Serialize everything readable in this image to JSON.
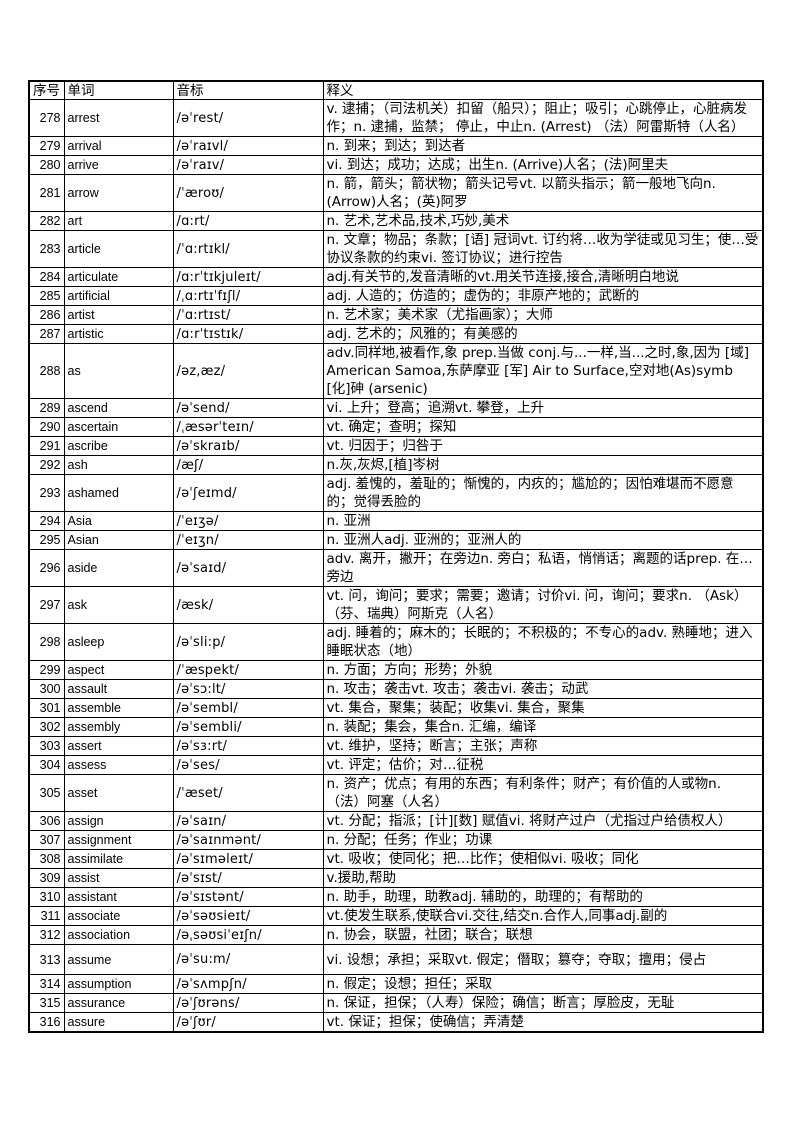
{
  "table": {
    "headers": [
      "序号",
      "单词",
      "音标",
      "释义"
    ],
    "rows": [
      {
        "no": "278",
        "word": "arrest",
        "phonetic": "/əˈrest/",
        "definition": "v. 逮捕；（司法机关）扣留（船只）；阻止；吸引；心跳停止，心脏病发作；n. 逮捕，监禁； 停止，中止n. (Arrest) （法）阿雷斯特（人名）"
      },
      {
        "no": "279",
        "word": "arrival",
        "phonetic": "/əˈraɪvl/",
        "definition": "n. 到来；到达；到达者"
      },
      {
        "no": "280",
        "word": "arrive",
        "phonetic": "/əˈraɪv/",
        "definition": "vi. 到达；成功；达成；出生n. (Arrive)人名；(法)阿里夫"
      },
      {
        "no": "281",
        "word": "arrow",
        "phonetic": "/ˈæroʊ/",
        "definition": "n. 箭，箭头；箭状物；箭头记号vt. 以箭头指示；箭一般地飞向n. (Arrow)人名；(英)阿罗"
      },
      {
        "no": "282",
        "word": "art",
        "phonetic": "/ɑ:rt/",
        "definition": "n. 艺术,艺术品,技术,巧妙,美术"
      },
      {
        "no": "283",
        "word": "article",
        "phonetic": "/ˈɑ:rtɪkl/",
        "definition": "n. 文章；物品；条款；[语] 冠词vt. 订约将…收为学徒或见习生；使…受协议条款的约束vi. 签订协议；进行控告"
      },
      {
        "no": "284",
        "word": "articulate",
        "phonetic": "/ɑ:rˈtɪkjuleɪt/",
        "definition": "adj.有关节的,发音清晰的vt.用关节连接,接合,清晰明白地说"
      },
      {
        "no": "285",
        "word": "artificial",
        "phonetic": "/ˌɑ:rtɪˈfɪʃl/",
        "definition": "adj. 人造的；仿造的；虚伪的；非原产地的；武断的"
      },
      {
        "no": "286",
        "word": "artist",
        "phonetic": "/ˈɑ:rtɪst/",
        "definition": "n. 艺术家；美术家（尤指画家）；大师"
      },
      {
        "no": "287",
        "word": "artistic",
        "phonetic": "/ɑ:rˈtɪstɪk/",
        "definition": "adj. 艺术的；风雅的；有美感的"
      },
      {
        "no": "288",
        "word": "as",
        "phonetic": "/əz,æz/",
        "definition": "adv.同样地,被看作,象 prep.当做 conj.与...一样,当...之时,象,因为 [域] American Samoa,东萨摩亚 [军] Air to Surface,空对地(As)symb [化]砷 (arsenic)"
      },
      {
        "no": "289",
        "word": "ascend",
        "phonetic": "/əˈsend/",
        "definition": "vi. 上升；登高；追溯vt. 攀登，上升"
      },
      {
        "no": "290",
        "word": "ascertain",
        "phonetic": "/ˌæsərˈteɪn/",
        "definition": "vt. 确定；查明；探知"
      },
      {
        "no": "291",
        "word": "ascribe",
        "phonetic": "/əˈskraɪb/",
        "definition": "vt. 归因于；归咎于"
      },
      {
        "no": "292",
        "word": "ash",
        "phonetic": "/æʃ/",
        "definition": "n.灰,灰烬,[植]岑树"
      },
      {
        "no": "293",
        "word": "ashamed",
        "phonetic": "/əˈʃeɪmd/",
        "definition": "adj. 羞愧的，羞耻的；惭愧的，内疚的；尴尬的；因怕难堪而不愿意的；觉得丢脸的"
      },
      {
        "no": "294",
        "word": "Asia",
        "phonetic": "/ˈeɪʒə/",
        "definition": "n. 亚洲"
      },
      {
        "no": "295",
        "word": "Asian",
        "phonetic": "/ˈeɪʒn/",
        "definition": "n. 亚洲人adj. 亚洲的；亚洲人的"
      },
      {
        "no": "296",
        "word": "aside",
        "phonetic": "/əˈsaɪd/",
        "definition": "adv. 离开，撇开；在旁边n. 旁白；私语，悄悄话；离题的话prep. 在…旁边"
      },
      {
        "no": "297",
        "word": "ask",
        "phonetic": "/æsk/",
        "definition": "vt. 问，询问；要求；需要；邀请；讨价vi. 问，询问；要求n. （Ask）（芬、瑞典）阿斯克（人名）"
      },
      {
        "no": "298",
        "word": "asleep",
        "phonetic": "/əˈsli:p/",
        "definition": "adj. 睡着的；麻木的；长眠的；不积极的；不专心的adv. 熟睡地；进入睡眠状态（地）"
      },
      {
        "no": "299",
        "word": "aspect",
        "phonetic": "/ˈæspekt/",
        "definition": "n. 方面；方向；形势；外貌"
      },
      {
        "no": "300",
        "word": "assault",
        "phonetic": "/əˈsɔ:lt/",
        "definition": "n. 攻击；袭击vt. 攻击；袭击vi. 袭击；动武"
      },
      {
        "no": "301",
        "word": "assemble",
        "phonetic": "/əˈsembl/",
        "definition": "vt. 集合，聚集；装配；收集vi. 集合，聚集"
      },
      {
        "no": "302",
        "word": "assembly",
        "phonetic": "/əˈsembli/",
        "definition": "n. 装配；集会，集合n. 汇编，编译"
      },
      {
        "no": "303",
        "word": "assert",
        "phonetic": "/əˈsɜ:rt/",
        "definition": "vt. 维护，坚持；断言；主张；声称"
      },
      {
        "no": "304",
        "word": "assess",
        "phonetic": "/əˈses/",
        "definition": "vt. 评定；估价；对…征税"
      },
      {
        "no": "305",
        "word": "asset",
        "phonetic": "/ˈæset/",
        "definition": "n. 资产；优点；有用的东西；有利条件；财产；有价值的人或物n. （法）阿塞（人名）"
      },
      {
        "no": "306",
        "word": "assign",
        "phonetic": "/əˈsaɪn/",
        "definition": "vt. 分配；指派；[计][数] 赋值vi. 将财产过户（尤指过户给债权人）"
      },
      {
        "no": "307",
        "word": "assignment",
        "phonetic": "/əˈsaɪnmənt/",
        "definition": "n. 分配；任务；作业；功课"
      },
      {
        "no": "308",
        "word": "assimilate",
        "phonetic": "/əˈsɪməleɪt/",
        "definition": "vt. 吸收；使同化；把…比作；使相似vi. 吸收；同化"
      },
      {
        "no": "309",
        "word": "assist",
        "phonetic": "/əˈsɪst/",
        "definition": "v.援助,帮助"
      },
      {
        "no": "310",
        "word": "assistant",
        "phonetic": "/əˈsɪstənt/",
        "definition": "n. 助手，助理，助教adj. 辅助的，助理的；有帮助的"
      },
      {
        "no": "311",
        "word": "associate",
        "phonetic": "/əˈsəʊsieɪt/",
        "definition": "vt.使发生联系,使联合vi.交往,结交n.合作人,同事adj.副的"
      },
      {
        "no": "312",
        "word": "association",
        "phonetic": "/əˌsəʊsiˈeɪʃn/",
        "definition": "n. 协会，联盟，社团；联合；联想"
      },
      {
        "no": "313",
        "word": "assume",
        "phonetic": "/əˈsu:m/",
        "definition": "vi. 设想；承担；采取vt. 假定；僭取；篡夺；夺取；擅用；侵占"
      },
      {
        "no": "314",
        "word": "assumption",
        "phonetic": "/əˈsʌmpʃn/",
        "definition": "n. 假定；设想；担任；采取"
      },
      {
        "no": "315",
        "word": "assurance",
        "phonetic": "/əˈʃʊrəns/",
        "definition": "n. 保证，担保；（人寿）保险；确信；断言；厚脸皮，无耻"
      },
      {
        "no": "316",
        "word": "assure",
        "phonetic": "/əˈʃʊr/",
        "definition": "vt. 保证；担保；使确信；弄清楚"
      }
    ]
  }
}
